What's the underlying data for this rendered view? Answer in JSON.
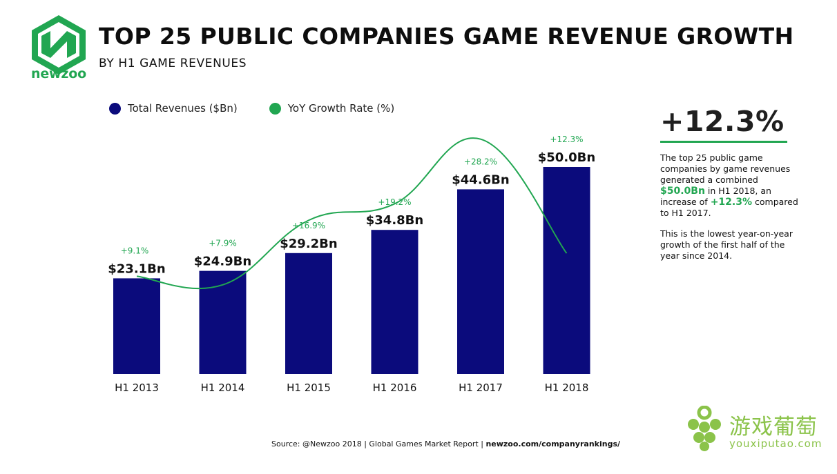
{
  "brand": {
    "logo_text": "newzoo",
    "green": "#21a651",
    "navy": "#0b0b7c"
  },
  "header": {
    "title": "TOP 25 PUBLIC COMPANIES GAME REVENUE GROWTH",
    "subtitle": "BY H1 GAME REVENUES"
  },
  "legend": {
    "revenue_label": "Total Revenues ($Bn)",
    "growth_label": "YoY Growth Rate (%)"
  },
  "chart_data": {
    "type": "bar",
    "categories": [
      "H1 2013",
      "H1 2014",
      "H1 2015",
      "H1 2016",
      "H1 2017",
      "H1 2018"
    ],
    "series": [
      {
        "name": "Total Revenues ($Bn)",
        "values": [
          23.1,
          24.9,
          29.2,
          34.8,
          44.6,
          50.0
        ],
        "labels": [
          "$23.1Bn",
          "$24.9Bn",
          "$29.2Bn",
          "$34.8Bn",
          "$44.6Bn",
          "$50.0Bn"
        ],
        "color": "#0b0b7c"
      },
      {
        "name": "YoY Growth Rate (%)",
        "type": "line",
        "values": [
          9.1,
          7.9,
          16.9,
          19.2,
          28.2,
          12.3
        ],
        "labels": [
          "+9.1%",
          "+7.9%",
          "+16.9%",
          "+19.2%",
          "+28.2%",
          "+12.3%"
        ],
        "color": "#21a651"
      }
    ],
    "grid": false,
    "legend_position": "top-left"
  },
  "sidebar": {
    "headline": "+12.3%",
    "para1_a": "The top 25 public game companies by game revenues generated a combined",
    "para1_value": "$50.0Bn",
    "para1_b": "in H1 2018, an increase of",
    "para1_rate": "+12.3%",
    "para1_c": "compared to H1 2017.",
    "para2": "This is the lowest year-on-year growth of the first half of the year since 2014."
  },
  "footer": {
    "source_plain": "Source: @Newzoo 2018 | Global Games Market Report |",
    "source_link": "newzoo.com/companyrankings/"
  },
  "watermark": {
    "chinese": "游戏葡萄",
    "url": "youxiputao.com"
  }
}
